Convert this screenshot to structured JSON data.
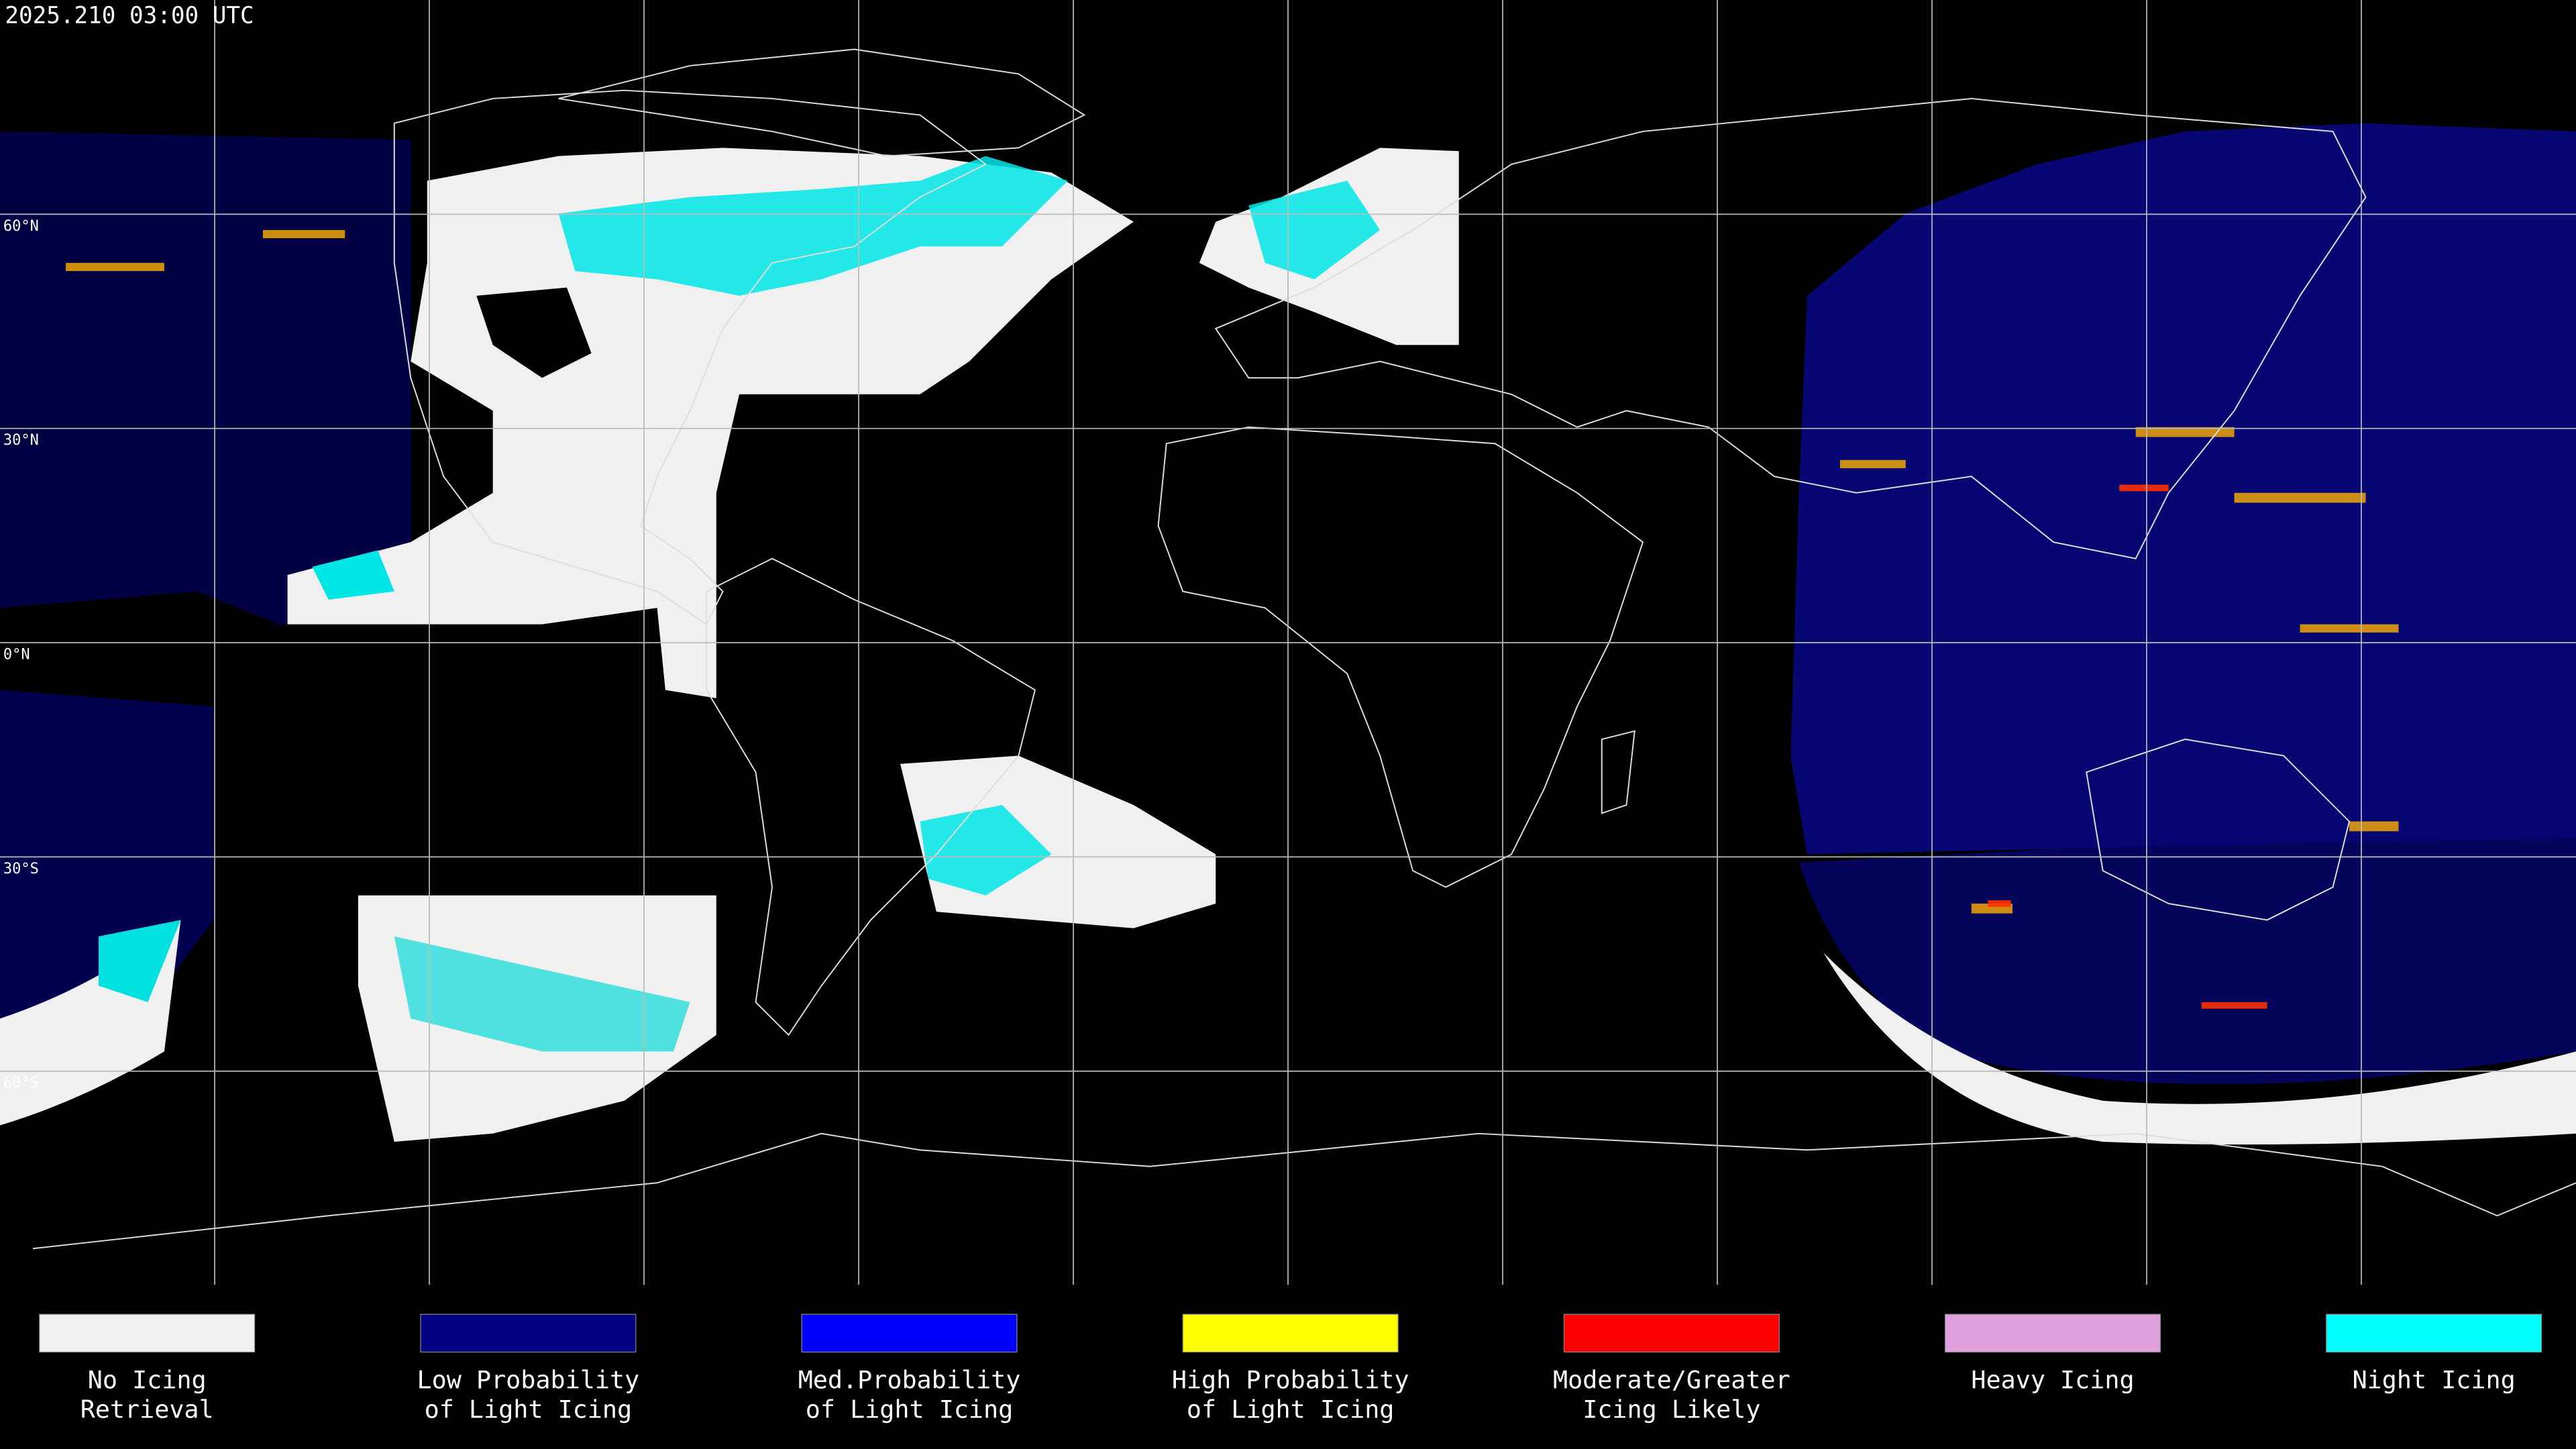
{
  "header": {
    "timestamp": "2025.210 03:00 UTC"
  },
  "map": {
    "latitude_labels": [
      "60°N",
      "30°N",
      "0°N",
      "30°S",
      "60°S"
    ]
  },
  "legend": {
    "items": [
      {
        "lines": [
          "No Icing",
          "Retrieval"
        ],
        "color": "#f0f0f0"
      },
      {
        "lines": [
          "Low Probability",
          "of Light Icing"
        ],
        "color": "#000080"
      },
      {
        "lines": [
          "Med.Probability",
          "of Light Icing"
        ],
        "color": "#0000ff"
      },
      {
        "lines": [
          "High Probability",
          "of Light Icing"
        ],
        "color": "#ffff00"
      },
      {
        "lines": [
          "Moderate/Greater",
          "Icing Likely"
        ],
        "color": "#ff0000"
      },
      {
        "lines": [
          "Heavy Icing"
        ],
        "color": "#e0a0e0"
      },
      {
        "lines": [
          "Night Icing"
        ],
        "color": "#00ffff"
      }
    ]
  }
}
